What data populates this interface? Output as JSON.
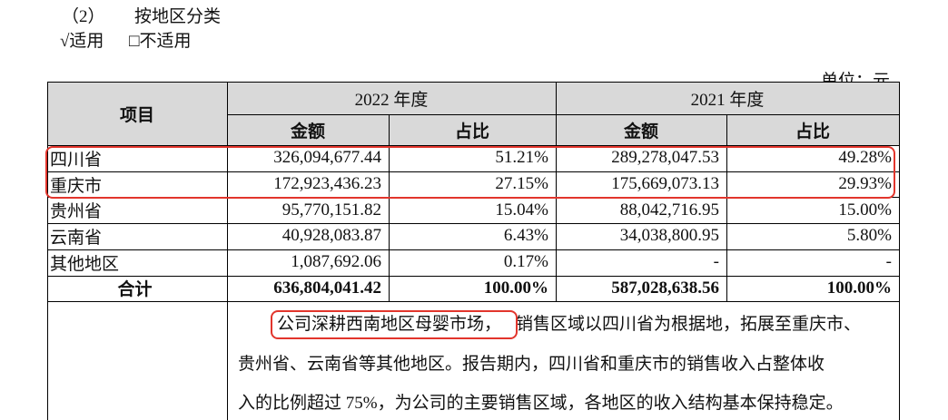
{
  "header": {
    "section": "（2）",
    "title": "按地区分类",
    "applicable": "√适用",
    "not_applicable": "□不适用",
    "unit": "单位：元"
  },
  "table": {
    "item_header": "项目",
    "periods": [
      "2022 年度",
      "2021 年度"
    ],
    "sub_headers": [
      "金额",
      "占比",
      "金额",
      "占比"
    ],
    "rows": [
      [
        "四川省",
        "326,094,677.44",
        "51.21%",
        "289,278,047.53",
        "49.28%"
      ],
      [
        "重庆市",
        "172,923,436.23",
        "27.15%",
        "175,669,073.13",
        "29.93%"
      ],
      [
        "贵州省",
        "95,770,151.82",
        "15.04%",
        "88,042,716.95",
        "15.00%"
      ],
      [
        "云南省",
        "40,928,083.87",
        "6.43%",
        "34,038,800.95",
        "5.80%"
      ],
      [
        "其他地区",
        "1,087,692.06",
        "0.17%",
        "-",
        "-"
      ]
    ],
    "total": [
      "合计",
      "636,804,041.42",
      "100.00%",
      "587,028,638.56",
      "100.00%"
    ]
  },
  "note": {
    "highlight": "公司深耕西南地区母婴市场，",
    "lines": [
      "销售区域以四川省为根据地，拓展至重庆市、",
      "贵州省、云南省等其他地区。报告期内，四川省和重庆市的销售收入占整体收",
      "入的比例超过 75%，为公司的主要销售区域，各地区的收入结构基本保持稳定。"
    ]
  }
}
